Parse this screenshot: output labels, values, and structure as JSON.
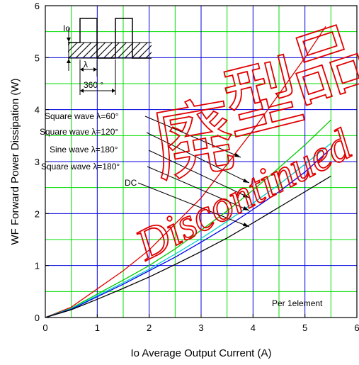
{
  "chart_data": {
    "type": "line",
    "title": "",
    "xlabel": "Io   Average Output Current    (A)",
    "ylabel": "WF    Forward Power Dissipation    (W)",
    "xlim": [
      0,
      6
    ],
    "ylim": [
      0,
      6
    ],
    "x_ticks": [
      "0",
      "1",
      "2",
      "3",
      "4",
      "5",
      "6"
    ],
    "y_ticks": [
      "0",
      "1",
      "2",
      "3",
      "4",
      "5",
      "6"
    ],
    "grid": true,
    "annotation": "Per 1element",
    "series": [
      {
        "name": "Square wave  λ=60°",
        "color": "#e00000",
        "x": [
          0,
          0.5,
          1,
          1.5,
          2,
          2.5,
          3,
          3.5,
          4,
          4.5,
          5,
          5.4
        ],
        "y": [
          0,
          0.2,
          0.55,
          0.9,
          1.3,
          1.8,
          2.3,
          2.95,
          3.6,
          4.3,
          5.0,
          5.6
        ]
      },
      {
        "name": "Square wave  λ=120°",
        "color": "#00cc00",
        "x": [
          0,
          0.5,
          1,
          1.5,
          2,
          2.5,
          3,
          3.5,
          4,
          4.5,
          5,
          5.5
        ],
        "y": [
          0,
          0.18,
          0.45,
          0.72,
          1.0,
          1.32,
          1.68,
          2.05,
          2.45,
          2.88,
          3.32,
          3.8
        ]
      },
      {
        "name": "Sine wave  λ=180°",
        "color": "#00cccc",
        "x": [
          0,
          0.5,
          1,
          1.5,
          2,
          2.5,
          3,
          3.5,
          4,
          4.5,
          5,
          5.5
        ],
        "y": [
          0,
          0.17,
          0.42,
          0.67,
          0.93,
          1.22,
          1.52,
          1.85,
          2.2,
          2.56,
          2.95,
          3.35
        ]
      },
      {
        "name": "Square wave  λ=180°",
        "color": "#0000ee",
        "x": [
          0,
          0.5,
          1,
          1.5,
          2,
          2.5,
          3,
          3.5,
          4,
          4.5,
          5,
          5.5
        ],
        "y": [
          0,
          0.16,
          0.4,
          0.64,
          0.9,
          1.16,
          1.45,
          1.75,
          2.08,
          2.42,
          2.8,
          3.25
        ]
      },
      {
        "name": "DC",
        "color": "#000000",
        "x": [
          0,
          0.5,
          1,
          1.5,
          2,
          2.5,
          3,
          3.5,
          4,
          4.5,
          5,
          5.5
        ],
        "y": [
          0,
          0.15,
          0.35,
          0.56,
          0.78,
          1.02,
          1.27,
          1.53,
          1.82,
          2.12,
          2.42,
          2.72
        ]
      }
    ],
    "inset": {
      "io_label": "Io",
      "lambda_label": "λ",
      "period_label": "360 °"
    },
    "watermark_text": [
      "廃",
      "型",
      "品",
      "Discontinued"
    ]
  }
}
